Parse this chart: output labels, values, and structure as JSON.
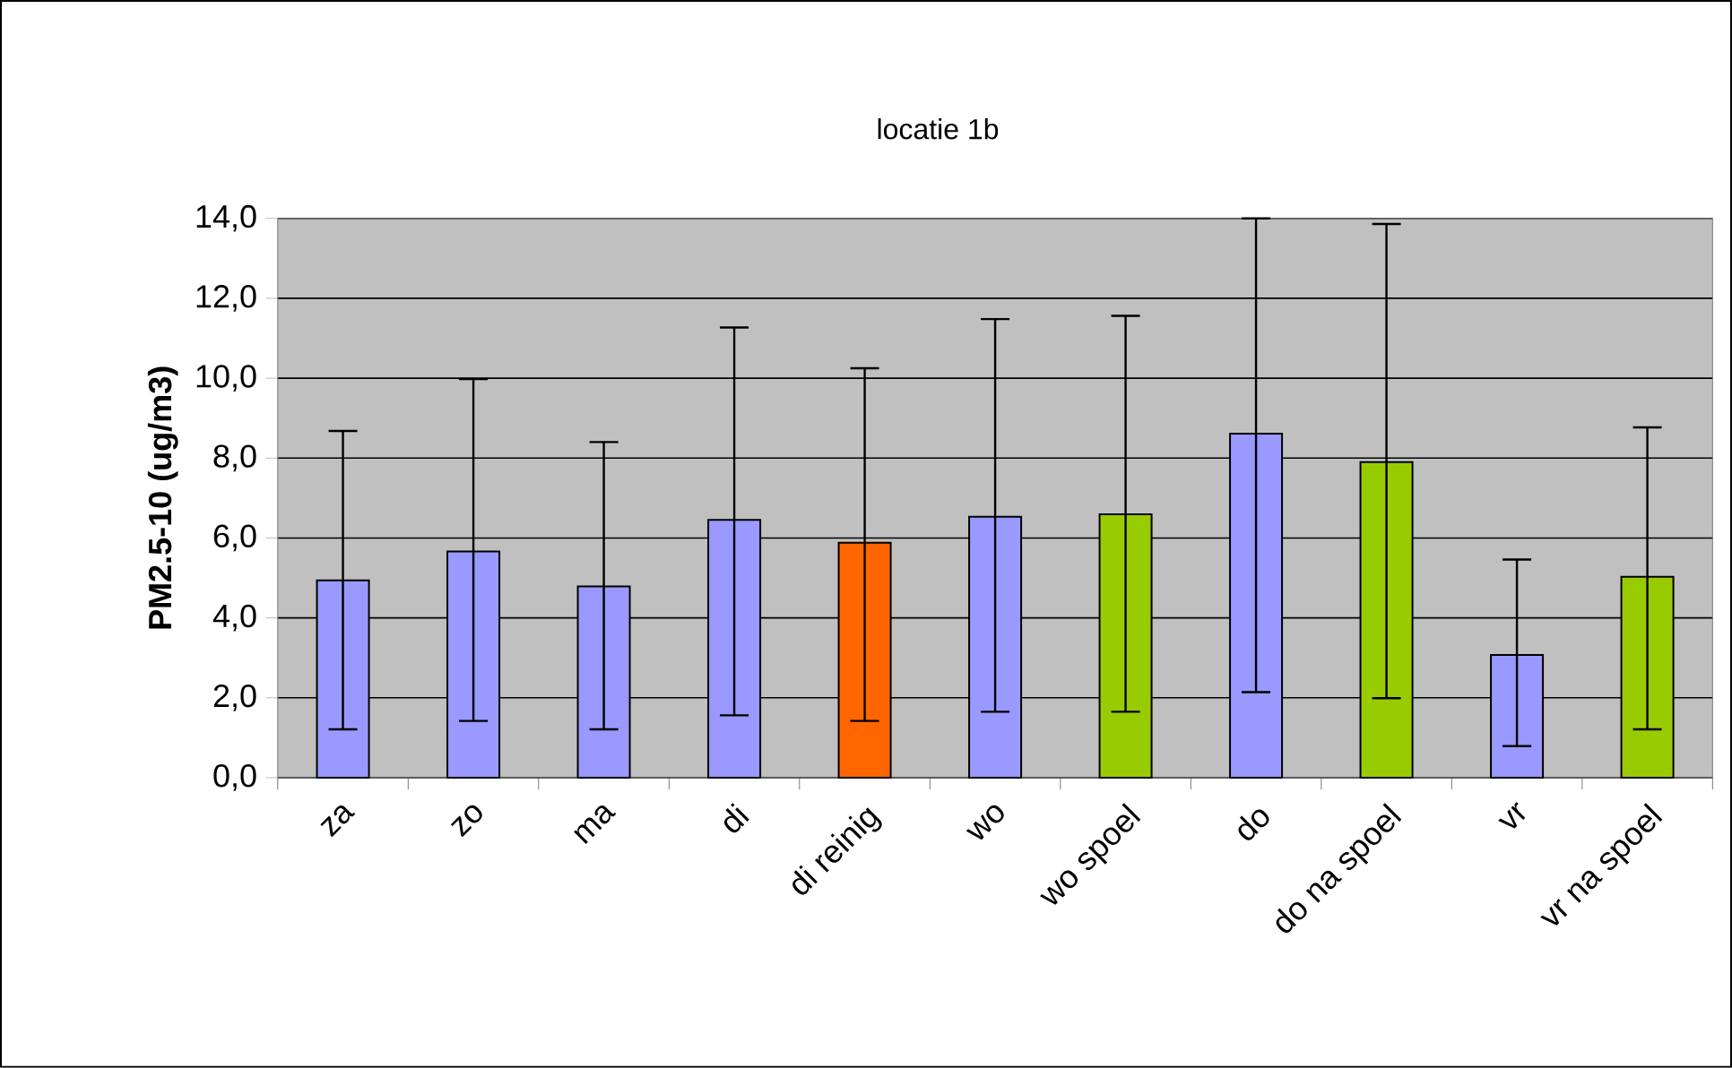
{
  "chart_data": {
    "type": "bar",
    "title": "locatie 1b",
    "ylabel": "PM2.5-10 (ug/m3)",
    "categories": [
      "za",
      "zo",
      "ma",
      "di",
      "di reinig",
      "wo",
      "wo spoel",
      "do",
      "do na spoel",
      "vr",
      "vr na spoel"
    ],
    "values": [
      4.94,
      5.66,
      4.79,
      6.45,
      5.88,
      6.53,
      6.59,
      8.61,
      7.9,
      3.07,
      5.03
    ],
    "colors": [
      "#9999ff",
      "#9999ff",
      "#9999ff",
      "#9999ff",
      "#ff6600",
      "#9999ff",
      "#99cc00",
      "#9999ff",
      "#99cc00",
      "#9999ff",
      "#99cc00"
    ],
    "errors": [
      [
        1.21,
        8.68
      ],
      [
        1.42,
        9.98
      ],
      [
        1.21,
        8.4
      ],
      [
        1.56,
        11.27
      ],
      [
        1.42,
        10.25
      ],
      [
        1.65,
        11.48
      ],
      [
        1.65,
        11.56
      ],
      [
        2.14,
        14.0
      ],
      [
        1.99,
        13.86
      ],
      [
        0.79,
        5.46
      ],
      [
        1.21,
        8.77
      ]
    ],
    "ylim": [
      0,
      14
    ],
    "yticks": [
      {
        "value": 0,
        "label": "0,0"
      },
      {
        "value": 2,
        "label": "2,0"
      },
      {
        "value": 4,
        "label": "4,0"
      },
      {
        "value": 6,
        "label": "6,0"
      },
      {
        "value": 8,
        "label": "8,0"
      },
      {
        "value": 10,
        "label": "10,0"
      },
      {
        "value": 12,
        "label": "12,0"
      },
      {
        "value": 14,
        "label": "14,0"
      }
    ],
    "grid": "y"
  }
}
